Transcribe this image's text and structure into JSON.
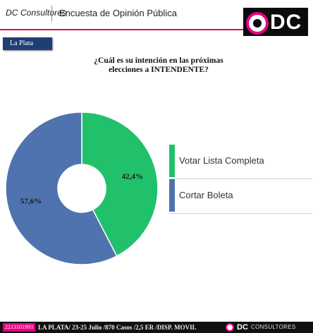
{
  "header": {
    "brand": "DC Consultores",
    "survey_title": "Encuesta de Opinión Pública",
    "logo": "ODC"
  },
  "region_badge": "La Plata",
  "question_lines": [
    "¿Cuál es su intención en las próximas",
    "elecciones a INTENDENTE?"
  ],
  "chart_data": {
    "type": "pie",
    "donut": true,
    "title": "",
    "categories": [
      "Votar Lista Completa",
      "Cortar Boleta"
    ],
    "values": [
      42.4,
      57.6
    ],
    "value_labels": [
      "42,4%",
      "57,6%"
    ],
    "colors": [
      "#21c16b",
      "#4f73ae"
    ],
    "legend_position": "right"
  },
  "footer": {
    "id_code": "2213101993",
    "details": "LA PLATA/ 23-25 Julio /870 Casos /2,5  ER /DISP. MOVIL",
    "logo_dc": "DC",
    "logo_consultores": "CONSULTORES"
  },
  "colors": {
    "brand_pink": "#e6007e",
    "badge_navy": "#1e3e74"
  }
}
